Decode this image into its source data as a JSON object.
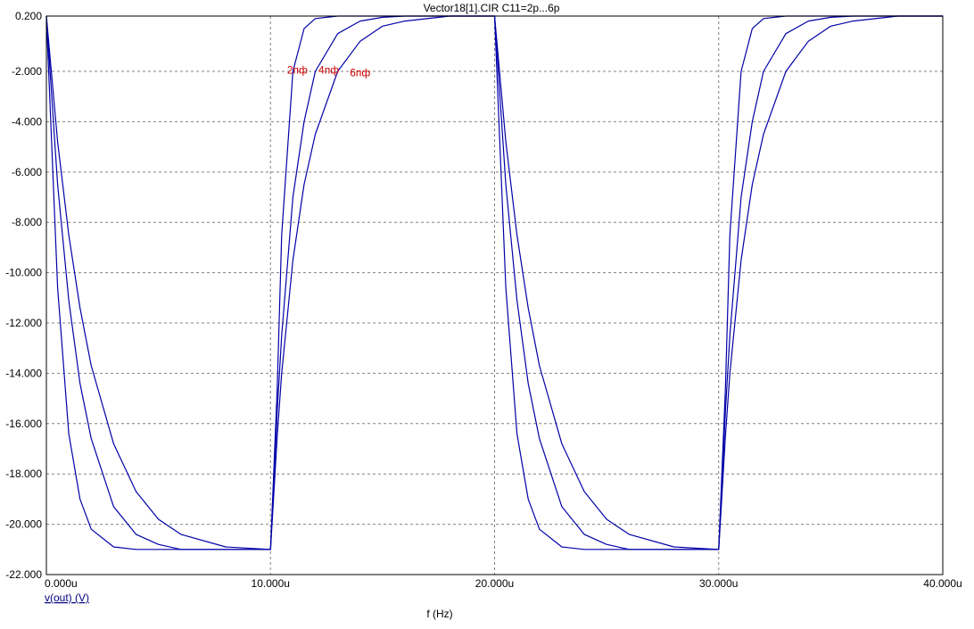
{
  "chart_data": {
    "type": "line",
    "title": "Vector18[1].CIR C11=2p...6p",
    "xlabel": "f (Hz)",
    "ylabel": "v(out) (V)",
    "xlim": [
      0,
      40
    ],
    "ylim": [
      -22,
      0.2
    ],
    "x_unit_suffix": "u",
    "grid": true,
    "x_ticks": [
      "0.000u",
      "10.000u",
      "20.000u",
      "30.000u",
      "40.000u"
    ],
    "y_ticks": [
      "0.200",
      "-2.000",
      "-4.000",
      "-6.000",
      "-8.000",
      "-10.000",
      "-12.000",
      "-14.000",
      "-16.000",
      "-18.000",
      "-20.000",
      "-22.000"
    ],
    "annotations": [
      "2пф",
      "4пф",
      "6пф"
    ],
    "line_color": "#0000a8",
    "annotation_color": "#cc0000",
    "series": [
      {
        "x": [
          0,
          0.5,
          1,
          1.5,
          2,
          3,
          4,
          5,
          6,
          8,
          10,
          10.3,
          10.5,
          11,
          11.5,
          12,
          13,
          14,
          15,
          16,
          18,
          20,
          20.5,
          21,
          21.5,
          22,
          23,
          24,
          25,
          26,
          28,
          30,
          30.3,
          30.5,
          31,
          31.5,
          32,
          33,
          34,
          35,
          36,
          38,
          40
        ],
        "y": [
          0.2,
          -10.6,
          -16.4,
          -19.0,
          -20.2,
          -20.9,
          -21.0,
          -21.0,
          -21.0,
          -21.0,
          -21.0,
          -14.6,
          -8.5,
          -2.0,
          -0.3,
          0.1,
          0.2,
          0.2,
          0.2,
          0.2,
          0.2,
          0.2,
          -10.6,
          -16.4,
          -19.0,
          -20.2,
          -20.9,
          -21.0,
          -21.0,
          -21.0,
          -21.0,
          -21.0,
          -14.6,
          -8.5,
          -2.0,
          -0.3,
          0.1,
          0.2,
          0.2,
          0.2,
          0.2,
          0.2,
          0.2
        ]
      },
      {
        "x": [
          0,
          0.5,
          1,
          1.5,
          2,
          3,
          4,
          5,
          6,
          8,
          10,
          10.3,
          10.5,
          11,
          11.5,
          12,
          13,
          14,
          15,
          16,
          18,
          20,
          20.5,
          21,
          21.5,
          22,
          23,
          24,
          25,
          26,
          28,
          30,
          30.3,
          30.5,
          31,
          31.5,
          32,
          33,
          34,
          35,
          36,
          38,
          40
        ],
        "y": [
          0.2,
          -6.5,
          -11.1,
          -14.4,
          -16.6,
          -19.3,
          -20.4,
          -20.8,
          -21.0,
          -21.0,
          -21.0,
          -15.5,
          -12.5,
          -7.0,
          -4.0,
          -2.0,
          -0.5,
          0.0,
          0.15,
          0.2,
          0.2,
          0.2,
          -6.5,
          -11.1,
          -14.4,
          -16.6,
          -19.3,
          -20.4,
          -20.8,
          -21.0,
          -21.0,
          -21.0,
          -15.5,
          -12.5,
          -7.0,
          -4.0,
          -2.0,
          -0.5,
          0.0,
          0.15,
          0.2,
          0.2,
          0.2
        ]
      },
      {
        "x": [
          0,
          0.5,
          1,
          1.5,
          2,
          3,
          4,
          5,
          6,
          8,
          10,
          10.3,
          10.5,
          11,
          11.5,
          12,
          13,
          14,
          15,
          16,
          18,
          20,
          20.5,
          21,
          21.5,
          22,
          23,
          24,
          25,
          26,
          28,
          30,
          30.3,
          30.5,
          31,
          31.5,
          32,
          33,
          34,
          35,
          36,
          38,
          40
        ],
        "y": [
          0.2,
          -4.8,
          -8.5,
          -11.4,
          -13.7,
          -16.8,
          -18.7,
          -19.8,
          -20.4,
          -20.9,
          -21.0,
          -16.5,
          -14.0,
          -9.5,
          -6.5,
          -4.5,
          -2.0,
          -0.8,
          -0.2,
          0.0,
          0.2,
          0.2,
          -4.8,
          -8.5,
          -11.4,
          -13.7,
          -16.8,
          -18.7,
          -19.8,
          -20.4,
          -20.9,
          -21.0,
          -16.5,
          -14.0,
          -9.5,
          -6.5,
          -4.5,
          -2.0,
          -0.8,
          -0.2,
          0.0,
          0.2,
          0.2
        ]
      }
    ]
  }
}
